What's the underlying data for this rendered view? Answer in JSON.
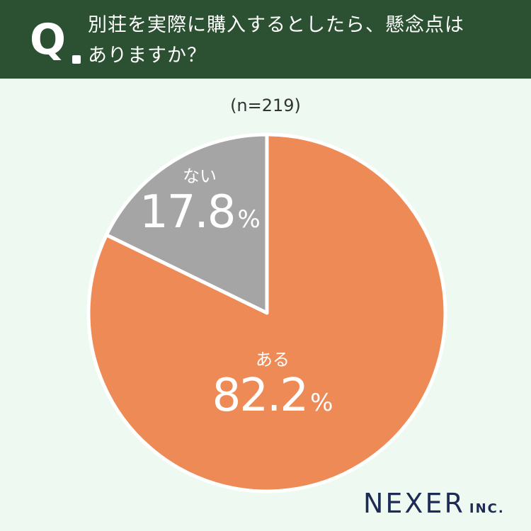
{
  "header": {
    "q_label": "Q",
    "question_line1": "別荘を実際に購入するとしたら、懸念点は",
    "question_line2": "ありますか？"
  },
  "sample_size": "(n=219)",
  "colors": {
    "header_bg": "#2c5132",
    "page_bg": "#eefaf1",
    "aru": "#ee8a55",
    "nai": "#a5a5a5",
    "logo": "#1e2b55"
  },
  "chart_data": {
    "type": "pie",
    "title": "",
    "slices": [
      {
        "label": "ない",
        "value": 17.8,
        "display": "17.8",
        "unit": "%",
        "color": "#a5a5a5"
      },
      {
        "label": "ある",
        "value": 82.2,
        "display": "82.2",
        "unit": "%",
        "color": "#ee8a55"
      }
    ],
    "start_angle_deg": 0,
    "direction": "counterclockwise-for-first-slice"
  },
  "logo": {
    "main": "NEXER",
    "sub": "INC."
  }
}
